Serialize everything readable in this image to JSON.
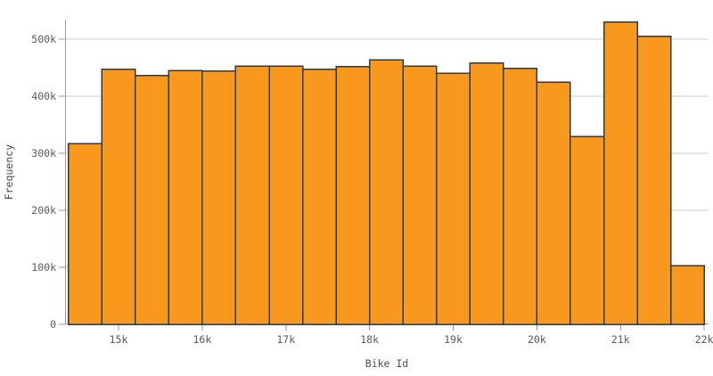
{
  "chart_data": {
    "type": "bar",
    "subtype": "histogram",
    "title": "",
    "xlabel": "Bike Id",
    "ylabel": "Frequency",
    "legend": "none",
    "grid": "horizontal",
    "bin_edges": [
      14400,
      14800,
      15200,
      15600,
      16000,
      16400,
      16800,
      17200,
      17600,
      18000,
      18400,
      18800,
      19200,
      19600,
      20000,
      20400,
      20800,
      21200,
      21600,
      22000
    ],
    "values": [
      317000,
      447000,
      436000,
      445000,
      444000,
      453000,
      453000,
      447000,
      452000,
      464000,
      453000,
      440000,
      458000,
      449000,
      425000,
      329000,
      530000,
      505000,
      103000
    ],
    "x_ticks": [
      {
        "value": 15000,
        "label": "15k"
      },
      {
        "value": 16000,
        "label": "16k"
      },
      {
        "value": 17000,
        "label": "17k"
      },
      {
        "value": 18000,
        "label": "18k"
      },
      {
        "value": 19000,
        "label": "19k"
      },
      {
        "value": 20000,
        "label": "20k"
      },
      {
        "value": 21000,
        "label": "21k"
      },
      {
        "value": 22000,
        "label": "22k"
      }
    ],
    "y_ticks": [
      {
        "value": 0,
        "label": "0"
      },
      {
        "value": 100000,
        "label": "100k"
      },
      {
        "value": 200000,
        "label": "200k"
      },
      {
        "value": 300000,
        "label": "300k"
      },
      {
        "value": 400000,
        "label": "400k"
      },
      {
        "value": 500000,
        "label": "500k"
      }
    ],
    "xlim": [
      14400,
      22050
    ],
    "ylim": [
      0,
      535000
    ],
    "colors": {
      "bar_fill": "#F8981D",
      "bar_border": "#253B53",
      "gridline": "#CCCCCC",
      "axis": "#999999",
      "tick_text": "#595959",
      "title_text": "#4D4D4D",
      "background": "#FFFFFF"
    }
  }
}
